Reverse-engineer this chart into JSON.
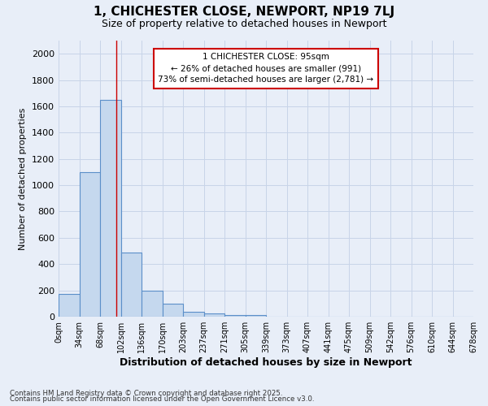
{
  "title_line1": "1, CHICHESTER CLOSE, NEWPORT, NP19 7LJ",
  "title_line2": "Size of property relative to detached houses in Newport",
  "xlabel": "Distribution of detached houses by size in Newport",
  "ylabel": "Number of detached properties",
  "bar_values": [
    175,
    1100,
    1650,
    490,
    200,
    100,
    40,
    25,
    15,
    15,
    0,
    0,
    0,
    0,
    0,
    0,
    0,
    0,
    0,
    0
  ],
  "bin_labels": [
    "0sqm",
    "34sqm",
    "68sqm",
    "102sqm",
    "136sqm",
    "170sqm",
    "203sqm",
    "237sqm",
    "271sqm",
    "305sqm",
    "339sqm",
    "373sqm",
    "407sqm",
    "441sqm",
    "475sqm",
    "509sqm",
    "542sqm",
    "576sqm",
    "610sqm",
    "644sqm",
    "678sqm"
  ],
  "bar_color": "#c5d8ee",
  "bar_edge_color": "#5b8fc9",
  "bar_width": 1.0,
  "red_line_x": 2.79,
  "annotation_text": "1 CHICHESTER CLOSE: 95sqm\n← 26% of detached houses are smaller (991)\n73% of semi-detached houses are larger (2,781) →",
  "annotation_box_facecolor": "#ffffff",
  "annotation_box_edgecolor": "#cc0000",
  "ylim": [
    0,
    2100
  ],
  "yticks": [
    0,
    200,
    400,
    600,
    800,
    1000,
    1200,
    1400,
    1600,
    1800,
    2000
  ],
  "grid_color": "#c8d4e8",
  "background_color": "#e8eef8",
  "footer_line1": "Contains HM Land Registry data © Crown copyright and database right 2025.",
  "footer_line2": "Contains public sector information licensed under the Open Government Licence v3.0."
}
